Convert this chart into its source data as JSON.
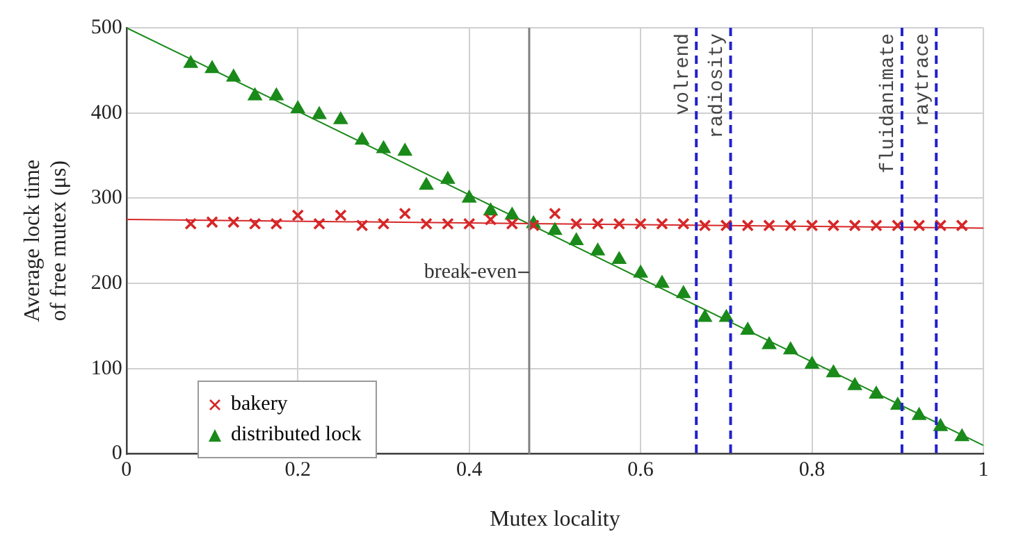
{
  "chart_data": {
    "type": "scatter",
    "xlabel": "Mutex locality",
    "ylabel": "Average lock time of free mutex (μs)",
    "xlim": [
      0,
      1
    ],
    "xticks": [
      0,
      0.2,
      0.4,
      0.6,
      0.8,
      1
    ],
    "ylim": [
      0,
      500
    ],
    "yticks": [
      0,
      100,
      200,
      300,
      400,
      500
    ],
    "grid": true,
    "legend": "bottom left",
    "series": [
      {
        "name": "bakery",
        "marker": "cross",
        "color": "#d62728",
        "x": [
          0.075,
          0.1,
          0.125,
          0.15,
          0.175,
          0.2,
          0.225,
          0.25,
          0.275,
          0.3,
          0.325,
          0.35,
          0.375,
          0.4,
          0.425,
          0.45,
          0.475,
          0.5,
          0.525,
          0.55,
          0.575,
          0.6,
          0.625,
          0.65,
          0.675,
          0.7,
          0.725,
          0.75,
          0.775,
          0.8,
          0.825,
          0.85,
          0.875,
          0.9,
          0.925,
          0.95,
          0.975
        ],
        "values": [
          270,
          272,
          272,
          270,
          270,
          280,
          270,
          280,
          268,
          270,
          282,
          270,
          270,
          270,
          275,
          270,
          268,
          282,
          270,
          270,
          270,
          270,
          270,
          270,
          268,
          268,
          268,
          268,
          268,
          268,
          268,
          268,
          268,
          268,
          268,
          268,
          268
        ]
      },
      {
        "name": "distributed lock",
        "marker": "triangle",
        "color": "#1a8a1a",
        "x": [
          0.075,
          0.1,
          0.125,
          0.15,
          0.175,
          0.2,
          0.225,
          0.25,
          0.275,
          0.3,
          0.325,
          0.35,
          0.375,
          0.4,
          0.425,
          0.45,
          0.475,
          0.5,
          0.525,
          0.55,
          0.575,
          0.6,
          0.625,
          0.65,
          0.675,
          0.7,
          0.725,
          0.75,
          0.775,
          0.8,
          0.825,
          0.85,
          0.875,
          0.9,
          0.925,
          0.95,
          0.975
        ],
        "values": [
          458,
          452,
          442,
          420,
          420,
          405,
          398,
          392,
          368,
          358,
          355,
          315,
          322,
          300,
          285,
          280,
          270,
          262,
          250,
          238,
          228,
          212,
          200,
          188,
          160,
          160,
          145,
          128,
          122,
          105,
          95,
          80,
          70,
          57,
          45,
          32,
          20
        ]
      },
      {
        "type": "line",
        "marker": "none",
        "color": "#d62728",
        "x": [
          0,
          1
        ],
        "values": [
          275,
          265
        ]
      },
      {
        "type": "line",
        "marker": "none",
        "color": "#1a8a1a",
        "x": [
          0,
          1
        ],
        "values": [
          500,
          10
        ]
      }
    ],
    "ref_lines": [
      {
        "axis": "x",
        "value": 0.47,
        "label": "break-even",
        "color": "#808080",
        "line_style": "solid"
      },
      {
        "axis": "x",
        "value": 0.665,
        "label": "volrend",
        "color": "#2222cc",
        "line_style": "dashed"
      },
      {
        "axis": "x",
        "value": 0.705,
        "label": "radiosity",
        "color": "#2222cc",
        "line_style": "dashed"
      },
      {
        "axis": "x",
        "value": 0.905,
        "label": "fluidanimate",
        "color": "#2222cc",
        "line_style": "dashed"
      },
      {
        "axis": "x",
        "value": 0.945,
        "label": "raytrace",
        "color": "#2222cc",
        "line_style": "dashed"
      }
    ]
  }
}
